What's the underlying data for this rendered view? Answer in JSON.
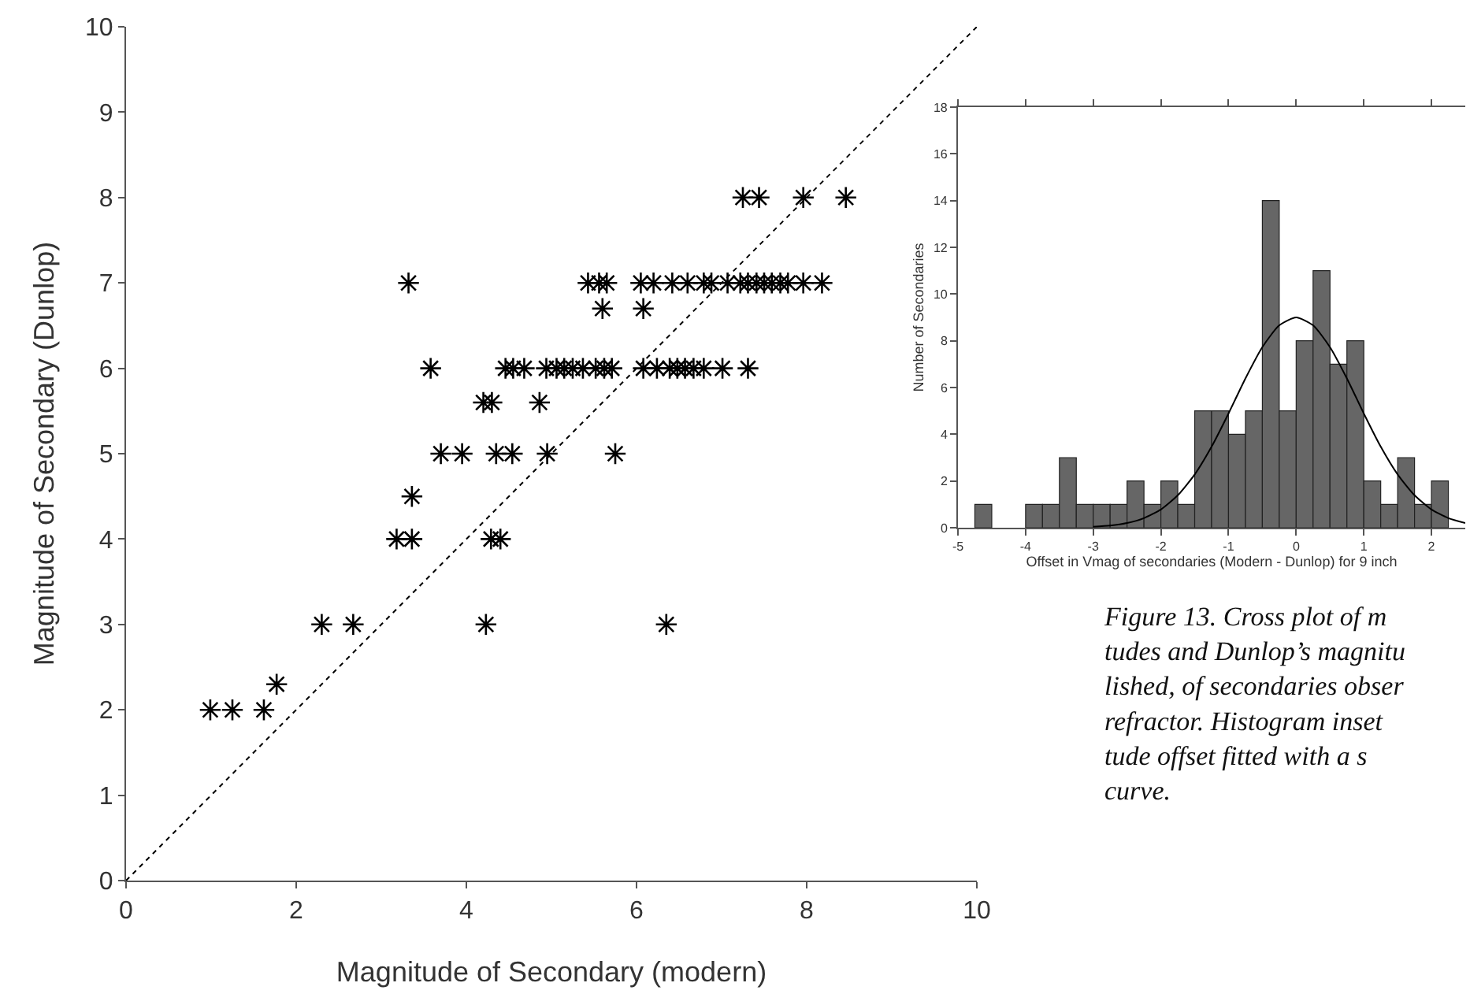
{
  "chart_data": [
    {
      "type": "scatter",
      "xlabel": "Magnitude of Secondary (modern)",
      "ylabel": "Magnitude of Secondary (Dunlop)",
      "xlim": [
        0,
        10
      ],
      "ylim": [
        0,
        10
      ],
      "xticks": [
        0,
        2,
        4,
        6,
        8,
        10
      ],
      "yticks": [
        0,
        1,
        2,
        3,
        4,
        5,
        6,
        7,
        8,
        9,
        10
      ],
      "series": [
        {
          "type": "scatter",
          "color": "#000000",
          "marker": "cross",
          "x": [
            0.99,
            1.25,
            1.62,
            1.77,
            2.3,
            2.67,
            4.23,
            6.35,
            3.18,
            3.36,
            4.29,
            4.4,
            3.36,
            3.7,
            3.95,
            4.35,
            4.54,
            4.95,
            5.75,
            4.2,
            4.3,
            4.86,
            3.58,
            4.46,
            4.55,
            4.68,
            4.94,
            5.06,
            5.15,
            5.25,
            5.37,
            5.52,
            5.62,
            5.71,
            6.08,
            6.24,
            6.39,
            6.48,
            6.57,
            6.67,
            6.79,
            7.01,
            7.31,
            5.6,
            6.08,
            3.32,
            5.43,
            5.56,
            5.65,
            6.05,
            6.2,
            6.42,
            6.6,
            6.79,
            6.88,
            7.07,
            7.22,
            7.31,
            7.41,
            7.5,
            7.59,
            7.69,
            7.78,
            7.96,
            8.18,
            7.25,
            7.44,
            7.96,
            8.46
          ],
          "values": [
            2,
            2,
            2,
            2.3,
            3,
            3,
            3,
            3,
            4,
            4,
            4,
            4,
            4.5,
            5,
            5,
            5,
            5,
            5,
            5,
            5.6,
            5.6,
            5.6,
            6,
            6,
            6,
            6,
            6,
            6,
            6,
            6,
            6,
            6,
            6,
            6,
            6,
            6,
            6,
            6,
            6,
            6,
            6,
            6,
            6,
            6.7,
            6.7,
            7,
            7,
            7,
            7,
            7,
            7,
            7,
            7,
            7,
            7,
            7,
            7,
            7,
            7,
            7,
            7,
            7,
            7,
            7,
            7,
            8,
            8,
            8,
            8
          ]
        },
        {
          "type": "line",
          "color": "#000000",
          "line_style": "dotted",
          "x": [
            0,
            10
          ],
          "values": [
            0,
            10
          ]
        }
      ]
    },
    {
      "type": "histogram",
      "xlabel": "Offset in Vmag of secondaries (Modern - Dunlop) for 9 inch",
      "ylabel": "Number of Secondaries",
      "xlim": [
        -5,
        2.5
      ],
      "ylim": [
        0,
        18
      ],
      "xticks": [
        -5,
        -4,
        -3,
        -2,
        -1,
        0,
        1,
        2
      ],
      "yticks": [
        0,
        2,
        4,
        6,
        8,
        10,
        12,
        14,
        16,
        18
      ],
      "bins": [
        -4.75,
        -4.5,
        -4.25,
        -4,
        -3.75,
        -3.5,
        -3.25,
        -3,
        -2.75,
        -2.5,
        -2.25,
        -2,
        -1.75,
        -1.5,
        -1.25,
        -1,
        -0.75,
        -0.5,
        -0.25,
        0,
        0.25,
        0.5,
        0.75,
        1,
        1.25,
        1.5,
        1.75,
        2,
        2.25
      ],
      "series": [
        {
          "type": "histogram",
          "color": "#666666",
          "values": [
            1,
            0,
            0,
            1,
            1,
            3,
            1,
            1,
            1,
            2,
            1,
            2,
            1,
            5,
            5,
            4,
            5,
            14,
            5,
            8,
            11,
            7,
            8,
            2,
            1,
            3,
            1,
            2
          ]
        },
        {
          "type": "line",
          "color": "#000000",
          "x": [
            -3,
            -2.75,
            -2.5,
            -2.25,
            -2,
            -1.75,
            -1.5,
            -1.25,
            -1,
            -0.75,
            -0.5,
            -0.25,
            0,
            0.25,
            0.5,
            0.75,
            1,
            1.25,
            1.5,
            1.75,
            2,
            2.25,
            2.5
          ],
          "values": [
            0.04,
            0.09,
            0.2,
            0.41,
            0.78,
            1.39,
            2.28,
            3.47,
            4.89,
            6.39,
            7.73,
            8.66,
            9,
            8.66,
            7.73,
            6.39,
            4.89,
            3.47,
            2.28,
            1.39,
            0.78,
            0.41,
            0.2
          ]
        }
      ],
      "annotations": [
        "Figure 13. Cross plot of m\ntudes and Dunlop’s magnitu\nlished, of secondaries obser\nrefractor. Histogram inset\ntude offset fitted with a s\ncurve."
      ]
    }
  ]
}
